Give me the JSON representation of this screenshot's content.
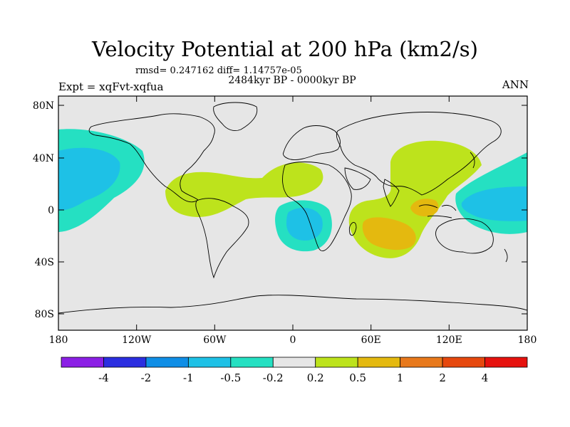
{
  "plot": {
    "title": "Velocity Potential at 200 hPa (km2/s)",
    "stats": "rmsd= 0.247162  diff= 1.14757e-05",
    "period": "2484kyr BP - 0000kyr BP",
    "experiment": "Expt = xqFvt-xqfua",
    "season": "ANN"
  },
  "axes": {
    "lat_ticks": [
      "80N",
      "40N",
      "0",
      "40S",
      "80S"
    ],
    "lon_ticks": [
      "180",
      "120W",
      "60W",
      "0",
      "60E",
      "120E",
      "180"
    ]
  },
  "colorbar": {
    "labels": [
      "-4",
      "-2",
      "-1",
      "-0.5",
      "-0.2",
      "0.2",
      "0.5",
      "1",
      "2",
      "4"
    ],
    "colors": [
      "#8b1fe5",
      "#2b2ee0",
      "#0f8ee6",
      "#1ec1e6",
      "#25e0c2",
      "#e6e6e6",
      "#bde31c",
      "#e4b90f",
      "#e8791c",
      "#e6480e",
      "#e6120e"
    ]
  },
  "colors": {
    "land_background": "#e6e6e6",
    "coast": "#000000"
  }
}
